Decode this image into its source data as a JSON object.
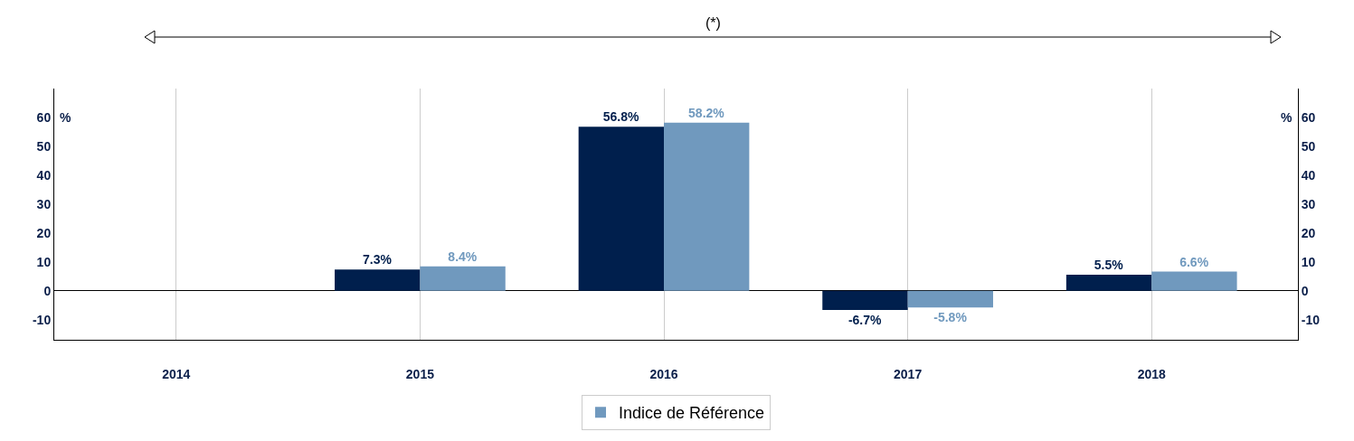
{
  "chart_data": {
    "type": "bar",
    "annotations": [
      "(*)"
    ],
    "ylabel": "%",
    "y2label": "%",
    "categories": [
      "2014",
      "2015",
      "2016",
      "2017",
      "2018"
    ],
    "series": [
      {
        "color": "#001f4d",
        "values": [
          null,
          7.3,
          56.8,
          -6.7,
          5.5
        ],
        "value_labels": [
          null,
          "7.3%",
          "56.8%",
          "-6.7%",
          "5.5%"
        ]
      },
      {
        "name": "Indice de Référence",
        "color": "#7099be",
        "values": [
          null,
          8.4,
          58.2,
          -5.8,
          6.6
        ],
        "value_labels": [
          null,
          "8.4%",
          "58.2%",
          "-5.8%",
          "6.6%"
        ]
      }
    ],
    "ylim": [
      -17,
      70
    ],
    "yticks": [
      -10,
      0,
      10,
      20,
      30,
      40,
      50,
      60
    ],
    "y2lim": [
      -17,
      70
    ],
    "y2ticks": [
      -10,
      0,
      10,
      20,
      30,
      40,
      50,
      60
    ],
    "grid": "x",
    "legend": "bottom"
  }
}
